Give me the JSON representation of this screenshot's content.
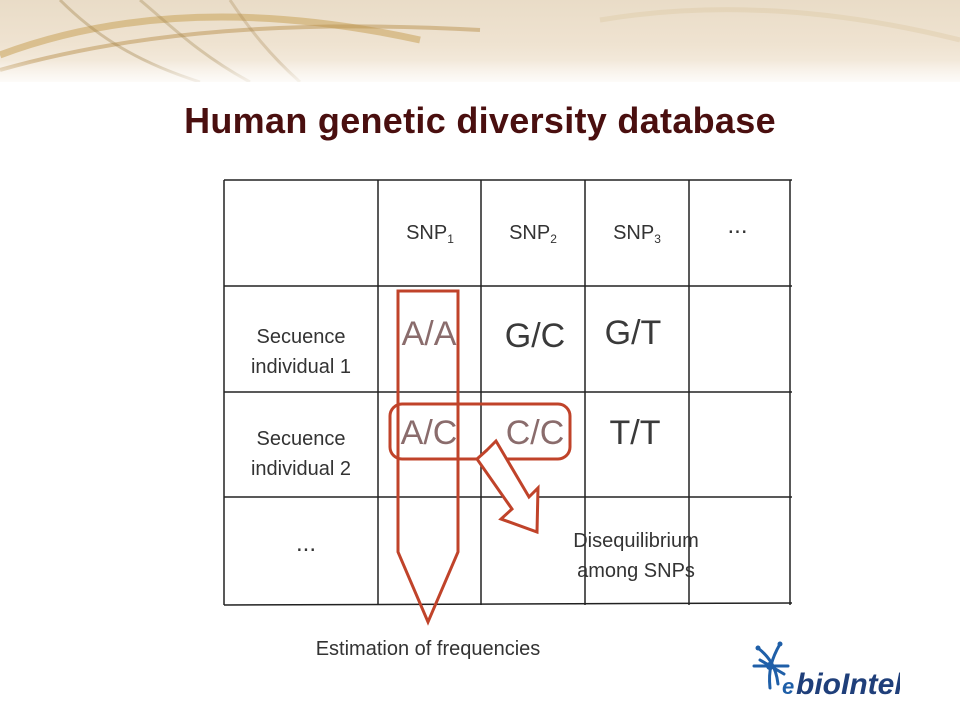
{
  "title": "Human genetic diversity database",
  "table": {
    "headers": [
      {
        "main": "SNP",
        "sub": "1"
      },
      {
        "main": "SNP",
        "sub": "2"
      },
      {
        "main": "SNP",
        "sub": "3"
      },
      {
        "main": "...",
        "sub": ""
      }
    ],
    "rows": [
      {
        "label_line1": "Secuence",
        "label_line2": "individual 1",
        "cells": [
          "A/A",
          "G/C",
          "G/T"
        ]
      },
      {
        "label_line1": "Secuence",
        "label_line2": "individual 2",
        "cells": [
          "A/C",
          "C/C",
          "T/T"
        ]
      }
    ],
    "ellipsis_row_label": "..."
  },
  "annotations": {
    "disequilibrium_line1": "Disequilibrium",
    "disequilibrium_line2": "among SNPs",
    "frequencies": "Estimation of frequencies"
  },
  "logo": {
    "prefix": "e",
    "name": "bioIntel"
  },
  "colors": {
    "title": "#4a0f0f",
    "highlight": "#c0432a",
    "logo_blue": "#1f5fa8"
  }
}
